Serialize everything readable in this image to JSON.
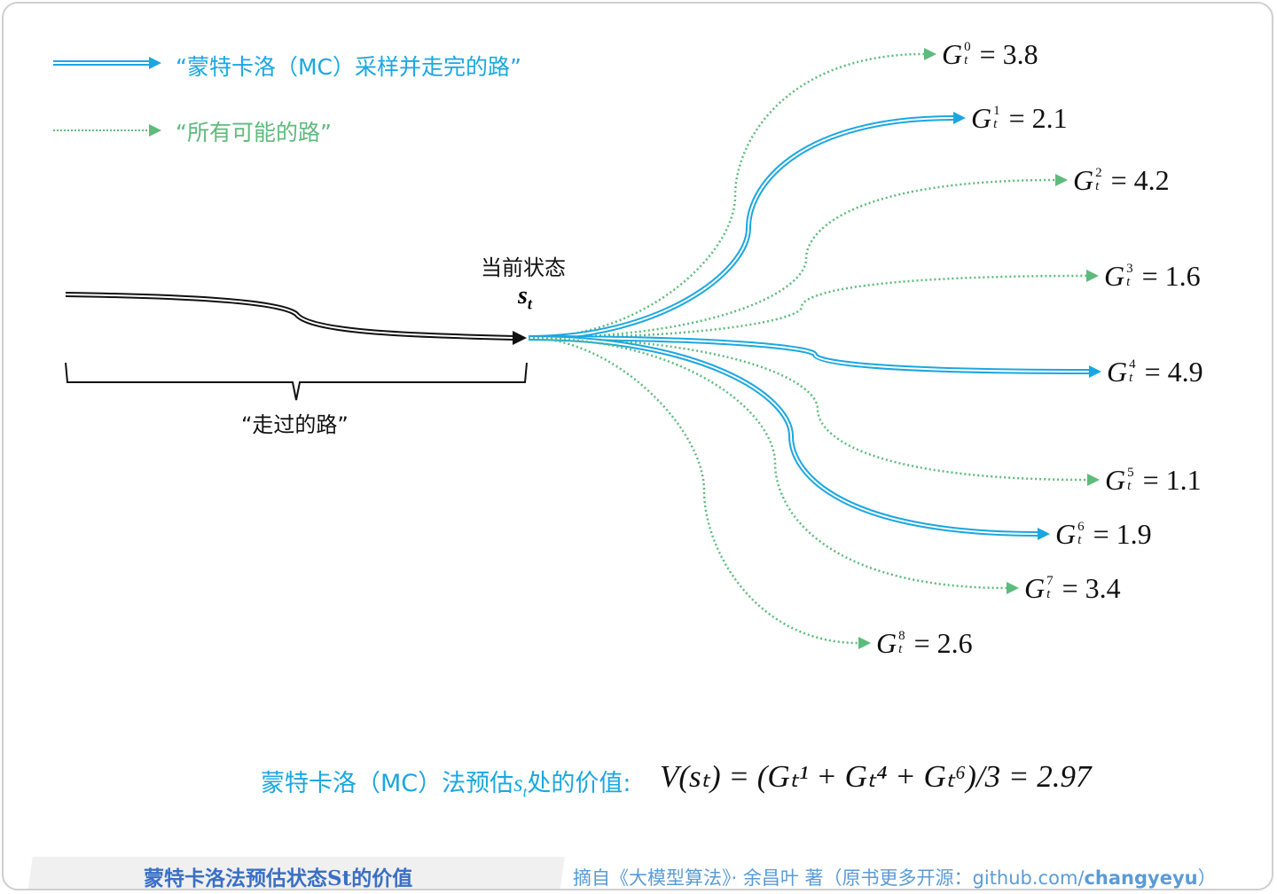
{
  "legend": {
    "sampled_label": "“蒙特卡洛（MC）采样并走完的路”",
    "possible_label": "“所有可能的路”"
  },
  "state": {
    "title": "当前状态",
    "symbol": "s",
    "subscript": "t"
  },
  "past_label": "“走过的路”",
  "returns": [
    {
      "sup": "0",
      "value": "= 3.8",
      "sampled": false
    },
    {
      "sup": "1",
      "value": "= 2.1",
      "sampled": true
    },
    {
      "sup": "2",
      "value": "= 4.2",
      "sampled": false
    },
    {
      "sup": "3",
      "value": "= 1.6",
      "sampled": false
    },
    {
      "sup": "4",
      "value": "= 4.9",
      "sampled": true
    },
    {
      "sup": "5",
      "value": "= 1.1",
      "sampled": false
    },
    {
      "sup": "6",
      "value": "= 1.9",
      "sampled": true
    },
    {
      "sup": "7",
      "value": "= 3.4",
      "sampled": false
    },
    {
      "sup": "8",
      "value": "= 2.6",
      "sampled": false
    }
  ],
  "formula": {
    "label": "蒙特卡洛（MC）法预估",
    "label_sym": "s",
    "label_sub": "t",
    "label_tail": "处的价值:",
    "expr": "V(sₜ) = (Gₜ¹ + Gₜ⁴ + Gₜ⁶)/3 = 2.97"
  },
  "footer": {
    "title": "蒙特卡洛法预估状态St的价值",
    "credit": "摘自《大模型算法》· 余昌叶 著（原书更多开源：github.com/",
    "credit_bold": "changyeyu",
    "credit_end": "）"
  },
  "colors": {
    "sampled": "#1aa7e0",
    "possible": "#5dbb7c",
    "footer_text": "#3a6fc4"
  }
}
